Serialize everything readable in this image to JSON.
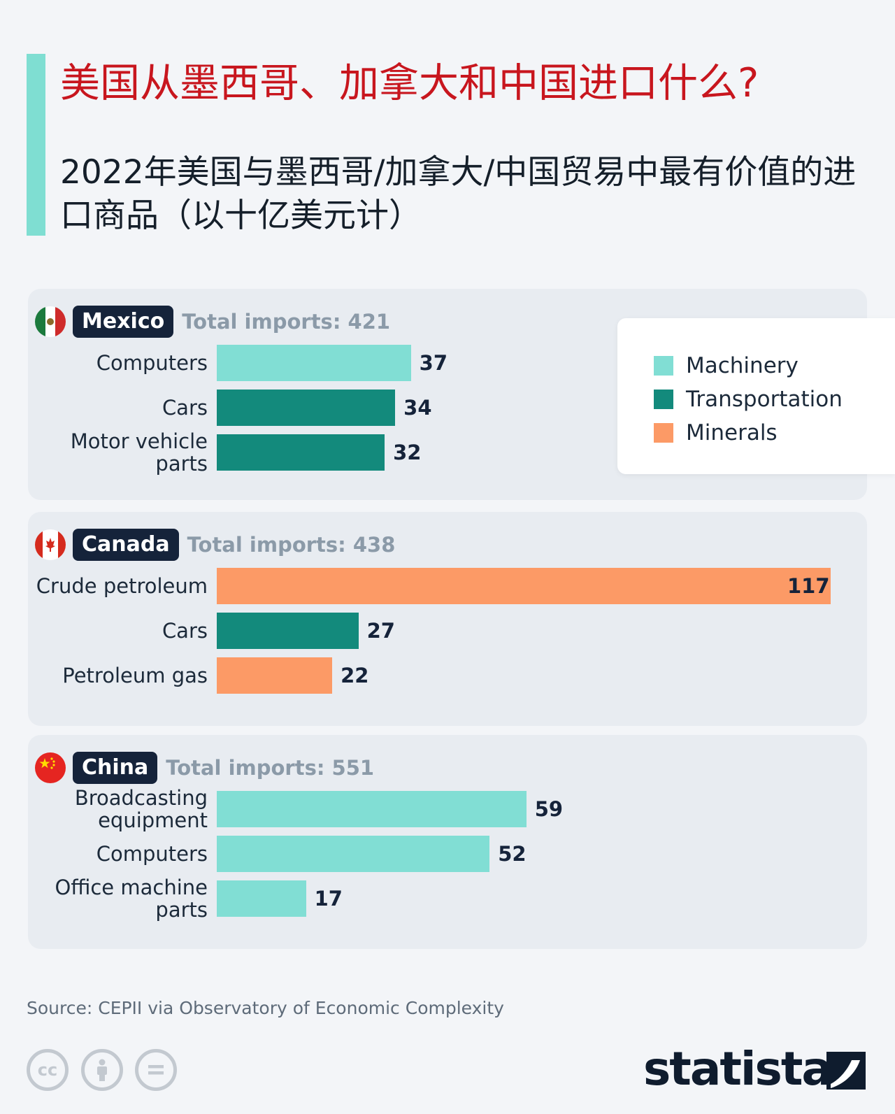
{
  "title": "美国从墨西哥、加拿大和中国进口什么?",
  "subtitle": "2022年美国与墨西哥/加拿大/中国贸易中最有价值的进口商品（以十亿美元计）",
  "colors": {
    "machinery": "#81ded4",
    "transportation": "#138a7c",
    "minerals": "#fc9a66",
    "accent": "#7fded2",
    "title": "#c8161e"
  },
  "legend": [
    {
      "label": "Machinery",
      "color": "#81ded4"
    },
    {
      "label": "Transportation",
      "color": "#138a7c"
    },
    {
      "label": "Minerals",
      "color": "#fc9a66"
    }
  ],
  "source": "Source: CEPII via Observatory of Economic Complexity",
  "logo": "statista",
  "cc_icons": [
    "cc-icon",
    "by-icon",
    "nd-icon"
  ],
  "chart_data": {
    "type": "bar",
    "orientation": "horizontal",
    "title": "美国从墨西哥、加拿大和中国进口什么?",
    "subtitle": "2022年美国与墨西哥/加拿大/中国贸易中最有价值的进口商品（以十亿美元计）",
    "xlim": [
      0,
      117
    ],
    "grid": false,
    "legend_position": "top-right",
    "groups": [
      {
        "country": "Mexico",
        "total_label": "Total imports: 421",
        "total": 421,
        "items": [
          {
            "label": "Computers",
            "value": 37,
            "category": "Machinery"
          },
          {
            "label": "Cars",
            "value": 34,
            "category": "Transportation"
          },
          {
            "label": "Motor vehicle\nparts",
            "value": 32,
            "category": "Transportation"
          }
        ]
      },
      {
        "country": "Canada",
        "total_label": "Total imports: 438",
        "total": 438,
        "items": [
          {
            "label": "Crude petroleum",
            "value": 117,
            "category": "Minerals"
          },
          {
            "label": "Cars",
            "value": 27,
            "category": "Transportation"
          },
          {
            "label": "Petroleum gas",
            "value": 22,
            "category": "Minerals"
          }
        ]
      },
      {
        "country": "China",
        "total_label": "Total imports: 551",
        "total": 551,
        "items": [
          {
            "label": "Broadcasting\nequipment",
            "value": 59,
            "category": "Machinery"
          },
          {
            "label": "Computers",
            "value": 52,
            "category": "Machinery"
          },
          {
            "label": "Office machine\nparts",
            "value": 17,
            "category": "Machinery"
          }
        ]
      }
    ]
  }
}
